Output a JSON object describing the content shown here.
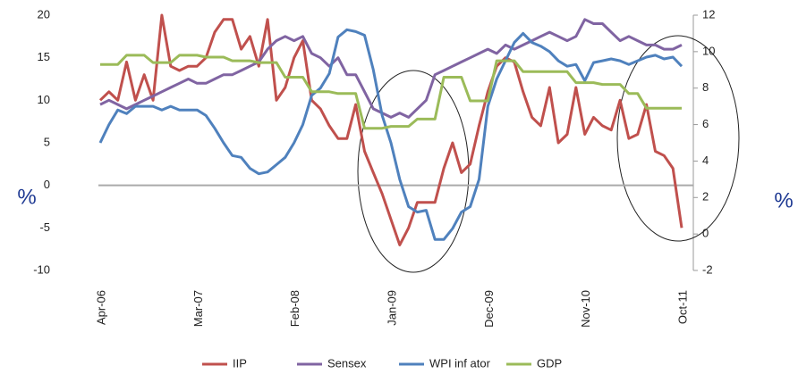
{
  "chart_data": {
    "type": "line",
    "y_label": "%",
    "y2_label": "%",
    "categories": [
      "Apr-06",
      null,
      null,
      null,
      null,
      null,
      null,
      null,
      null,
      null,
      null,
      "Mar-07",
      null,
      null,
      null,
      null,
      null,
      null,
      null,
      null,
      null,
      null,
      "Feb-08",
      null,
      null,
      null,
      null,
      null,
      null,
      null,
      null,
      null,
      null,
      "Jan-09",
      null,
      null,
      null,
      null,
      null,
      null,
      null,
      null,
      null,
      null,
      "Dec-09",
      null,
      null,
      null,
      null,
      null,
      null,
      null,
      null,
      null,
      null,
      "Nov-10",
      null,
      null,
      null,
      null,
      null,
      null,
      null,
      null,
      null,
      null,
      "Oct-11"
    ],
    "series": [
      {
        "name": "IIP",
        "color": "#c0504d",
        "values": [
          10,
          11,
          10,
          14.5,
          10,
          13,
          10,
          20,
          14,
          13.5,
          14,
          14,
          15,
          18,
          19.5,
          19.5,
          16,
          17.5,
          14,
          19.5,
          10,
          11.5,
          15,
          17,
          10,
          9,
          7,
          5.5,
          5.5,
          9.5,
          4,
          1.5,
          -1,
          -4,
          -7,
          -5,
          -2,
          -2,
          -2,
          2,
          5,
          1.5,
          2.5,
          7,
          11,
          14,
          15,
          14.5,
          11,
          8,
          7,
          11.5,
          5,
          6,
          11.5,
          6,
          8,
          7,
          6.5,
          10,
          5.5,
          6,
          9.5,
          4,
          3.5,
          2,
          -5
        ]
      },
      {
        "name": "Sensex",
        "color": "#8064a2",
        "values": [
          9.5,
          10,
          9.5,
          9,
          9.5,
          10,
          10.5,
          11,
          11.5,
          12,
          12.5,
          12,
          12,
          12.5,
          13,
          13,
          13.5,
          14,
          14.5,
          16,
          17,
          17.5,
          17,
          17.5,
          15.5,
          15,
          14,
          15,
          13,
          13,
          11,
          9,
          8.5,
          8,
          8.5,
          8,
          9,
          10,
          13,
          13.5,
          14,
          14.5,
          15,
          15.5,
          16,
          15.5,
          16.5,
          16,
          16.5,
          17,
          17.5,
          18,
          17.5,
          17,
          17.5,
          19.5,
          19,
          19,
          18,
          17,
          17.5,
          17,
          16.5,
          16.5,
          16,
          16,
          16.5
        ]
      },
      {
        "name": "WPI inf ator",
        "color": "#4f81bd",
        "axis": "y2",
        "values": [
          5,
          6,
          6.8,
          6.6,
          7,
          7,
          7,
          6.8,
          7,
          6.8,
          6.8,
          6.8,
          6.5,
          5.8,
          5,
          4.3,
          4.2,
          3.6,
          3.3,
          3.4,
          3.8,
          4.2,
          5,
          6,
          7.6,
          8,
          8.8,
          10.8,
          11.2,
          11.1,
          10.9,
          9,
          6.5,
          5,
          3,
          1.5,
          1.2,
          1.3,
          -0.3,
          -0.3,
          0.3,
          1.2,
          1.5,
          3,
          7,
          8.5,
          9.5,
          10.5,
          11,
          10.5,
          10.3,
          10,
          9.5,
          9.2,
          9.3,
          8.4,
          9.4,
          9.5,
          9.6,
          9.5,
          9.3,
          9.5,
          9.7,
          9.8,
          9.6,
          9.7,
          9.2
        ]
      },
      {
        "name": "GDP",
        "color": "#9bbb59",
        "axis": "y2",
        "values": [
          9.3,
          9.3,
          9.3,
          9.8,
          9.8,
          9.8,
          9.4,
          9.4,
          9.4,
          9.8,
          9.8,
          9.8,
          9.7,
          9.7,
          9.7,
          9.5,
          9.5,
          9.5,
          9.4,
          9.4,
          9.4,
          8.6,
          8.6,
          8.6,
          7.8,
          7.8,
          7.8,
          7.7,
          7.7,
          7.7,
          5.8,
          5.8,
          5.8,
          5.9,
          5.9,
          5.9,
          6.3,
          6.3,
          6.3,
          8.6,
          8.6,
          8.6,
          7.3,
          7.3,
          7.3,
          9.5,
          9.5,
          9.5,
          8.9,
          8.9,
          8.9,
          8.9,
          8.9,
          8.9,
          8.3,
          8.3,
          8.3,
          8.2,
          8.2,
          8.2,
          7.7,
          7.7,
          6.9,
          6.9,
          6.9,
          6.9,
          6.9
        ]
      }
    ],
    "ylim": [
      -10,
      20
    ],
    "yticks": [
      -10,
      -5,
      0,
      5,
      10,
      15,
      20
    ],
    "y2lim": [
      -2,
      12
    ],
    "y2ticks": [
      -2,
      0,
      2,
      4,
      6,
      8,
      10,
      12
    ],
    "legend": "bottom"
  }
}
